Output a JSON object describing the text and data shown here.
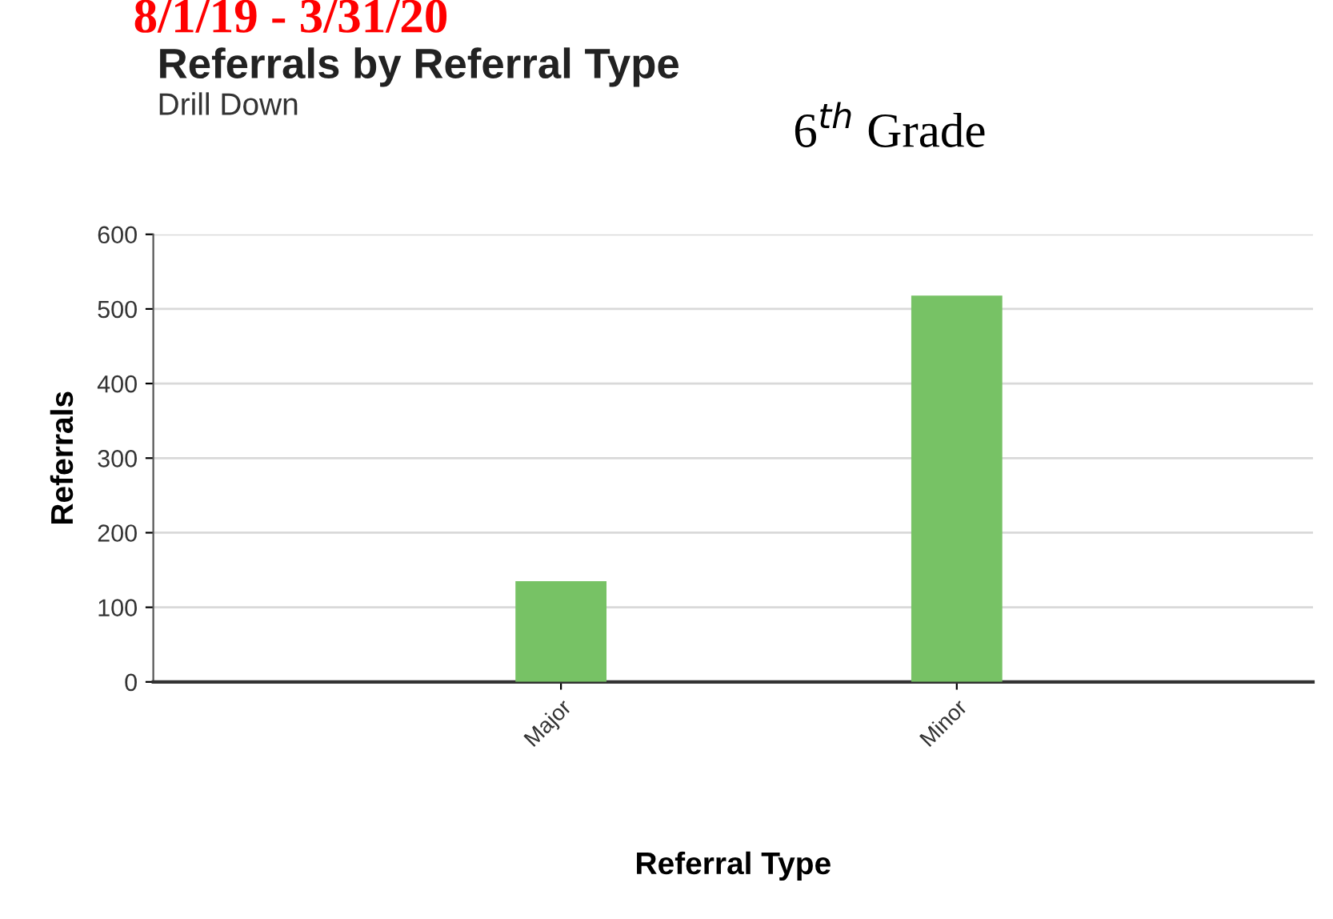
{
  "chart_data": {
    "type": "bar",
    "title": "Referrals by Referral Type",
    "subtitle": "Drill Down",
    "annotations": [
      "8/1/19 - 3/31/20",
      "6$^{th}$ Grade"
    ],
    "xlabel": "Referral Type",
    "ylabel": "Referrals",
    "categories": [
      "Major",
      "Minor"
    ],
    "values": [
      135,
      518
    ],
    "color": "#77c265",
    "ylim": [
      0,
      600
    ],
    "yticks": [
      0,
      100,
      200,
      300,
      400,
      500,
      600
    ],
    "grid": "y",
    "legend": false
  }
}
